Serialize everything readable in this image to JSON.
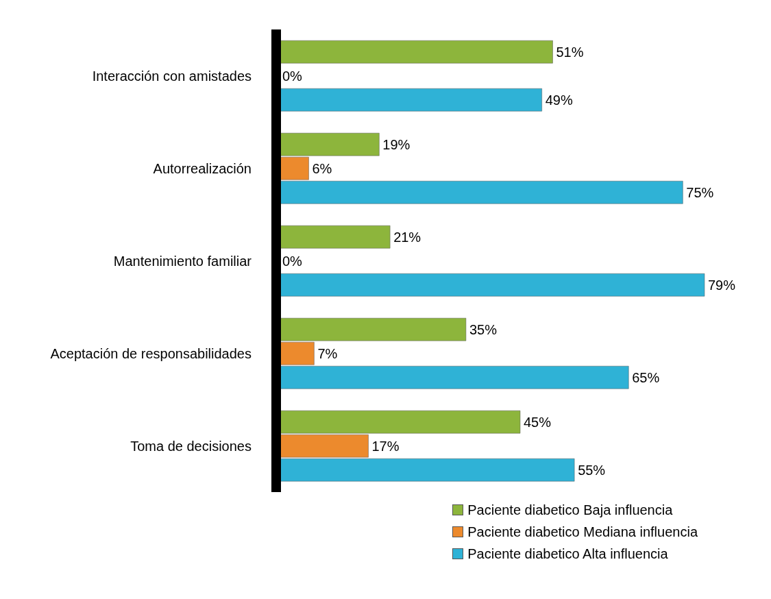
{
  "chart_data": {
    "type": "bar",
    "orientation": "horizontal",
    "categories": [
      "Interacción con amistades",
      "Autorrealización",
      "Mantenimiento familiar",
      "Aceptación de responsabilidades",
      "Toma de decisiones"
    ],
    "series": [
      {
        "name": "Paciente diabetico Baja influencia",
        "color": "#8db53c",
        "values": [
          51,
          19,
          21,
          35,
          45
        ],
        "value_labels": [
          "51%",
          "19%",
          "21%",
          "35%",
          "45%"
        ]
      },
      {
        "name": "Paciente diabetico Mediana influencia",
        "color": "#ec8a2d",
        "values": [
          0,
          6,
          0,
          7,
          17
        ],
        "value_labels": [
          "0%",
          "6%",
          "0%",
          "7%",
          "17%"
        ]
      },
      {
        "name": "Paciente diabetico Alta influencia",
        "color": "#2fb2d6",
        "values": [
          49,
          75,
          79,
          65,
          55
        ],
        "value_labels": [
          "49%",
          "75%",
          "79%",
          "65%",
          "55%"
        ]
      }
    ],
    "legend": "bottom",
    "grid": false
  }
}
